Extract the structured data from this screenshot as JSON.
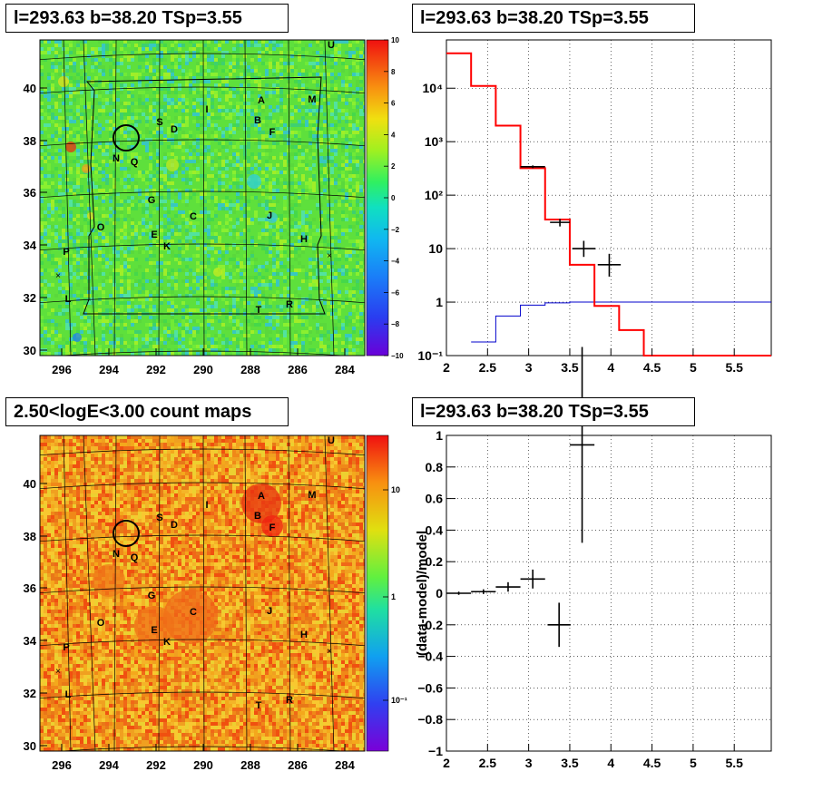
{
  "panels": {
    "map_top": {
      "title": "l=293.63 b=38.20 TSp=3.55"
    },
    "spec_top": {
      "title": "l=293.63 b=38.20 TSp=3.55"
    },
    "map_bottom": {
      "title": "2.50<logE<3.00 count maps"
    },
    "resid_bottom": {
      "title": "l=293.63 b=38.20 TSp=3.55"
    }
  },
  "colors": {
    "data": "#000000",
    "model": "#ff0000",
    "background_model": "#0000cc"
  },
  "chart_data": [
    {
      "type": "heatmap",
      "name": "significance map",
      "x_ticks": [
        "296",
        "294",
        "292",
        "290",
        "288",
        "286",
        "284"
      ],
      "y_ticks": [
        "30",
        "32",
        "34",
        "36",
        "38",
        "40"
      ],
      "colorbar_ticks": [
        "10",
        "8",
        "6",
        "4",
        "2",
        "0",
        "−2",
        "−4",
        "−6",
        "−8",
        "−10"
      ],
      "colorbar_range": [
        -10,
        10
      ],
      "source_labels": [
        "U",
        "A",
        "M",
        "I",
        "S",
        "D",
        "B",
        "F",
        "N",
        "Q",
        "G",
        "C",
        "J",
        "O",
        "E",
        "K",
        "H",
        "P",
        "L",
        "T",
        "R"
      ],
      "marked_position": {
        "l": 293.63,
        "b": 38.2
      }
    },
    {
      "type": "line",
      "name": "count spectrum",
      "x_ticks": [
        "2",
        "2.5",
        "3",
        "3.5",
        "4",
        "4.5",
        "5",
        "5.5"
      ],
      "y_ticks": [
        "10⁻¹",
        "1",
        "10",
        "10²",
        "10³",
        "10⁴"
      ],
      "xlim": [
        2,
        5.95
      ],
      "ylim": [
        0.1,
        80000
      ],
      "log_y": true,
      "model_steps": {
        "edges": [
          2,
          2.3,
          2.6,
          2.9,
          3.2,
          3.5,
          3.8,
          4.1,
          4.4,
          5.95
        ],
        "values": [
          45000,
          11000,
          2000,
          320,
          35,
          5,
          0.85,
          0.3,
          0.1
        ]
      },
      "background_steps": {
        "edges": [
          2.3,
          2.6,
          2.9,
          3.2,
          3.5,
          5.95
        ],
        "values": [
          0.18,
          0.55,
          0.88,
          0.97,
          1.0
        ]
      },
      "data_points": [
        {
          "x": 3.05,
          "y": 340,
          "xerr": 0.15,
          "yerr_lo": 20,
          "yerr_hi": 20
        },
        {
          "x": 3.38,
          "y": 31,
          "xerr": 0.12,
          "yerr_lo": 5,
          "yerr_hi": 5
        },
        {
          "x": 3.67,
          "y": 10,
          "xerr": 0.14,
          "yerr_lo": 3,
          "yerr_hi": 4
        },
        {
          "x": 3.98,
          "y": 5,
          "xerr": 0.14,
          "yerr_lo": 2,
          "yerr_hi": 3
        }
      ]
    },
    {
      "type": "heatmap",
      "name": "count map",
      "x_ticks": [
        "296",
        "294",
        "292",
        "290",
        "288",
        "286",
        "284"
      ],
      "y_ticks": [
        "30",
        "32",
        "34",
        "36",
        "38",
        "40"
      ],
      "colorbar_ticks": [
        "10",
        "1",
        "10⁻¹"
      ],
      "log_color": true,
      "source_labels": [
        "U",
        "A",
        "M",
        "I",
        "S",
        "D",
        "B",
        "F",
        "N",
        "Q",
        "G",
        "C",
        "J",
        "O",
        "E",
        "K",
        "H",
        "P",
        "L",
        "T",
        "R"
      ],
      "marked_position": {
        "l": 293.63,
        "b": 38.2
      }
    },
    {
      "type": "scatter",
      "name": "residuals",
      "ylabel": "(data-model)/model",
      "x_ticks": [
        "2",
        "2.5",
        "3",
        "3.5",
        "4",
        "4.5",
        "5",
        "5.5"
      ],
      "y_ticks": [
        "−1",
        "−0.8",
        "−0.6",
        "−0.4",
        "−0.2",
        "0",
        "0.2",
        "0.4",
        "0.6",
        "0.8",
        "1"
      ],
      "xlim": [
        2,
        5.95
      ],
      "ylim": [
        -1,
        1
      ],
      "points": [
        {
          "x": 2.15,
          "y": 0.0,
          "xerr": 0.15,
          "yerr": 0.01
        },
        {
          "x": 2.45,
          "y": 0.01,
          "xerr": 0.15,
          "yerr": 0.015
        },
        {
          "x": 2.75,
          "y": 0.04,
          "xerr": 0.15,
          "yerr": 0.03
        },
        {
          "x": 3.05,
          "y": 0.09,
          "xerr": 0.15,
          "yerr": 0.06
        },
        {
          "x": 3.37,
          "y": -0.2,
          "xerr": 0.14,
          "yerr": 0.14
        },
        {
          "x": 3.65,
          "y": 0.94,
          "xerr": 0.15,
          "yerr": 0.62
        }
      ]
    }
  ]
}
